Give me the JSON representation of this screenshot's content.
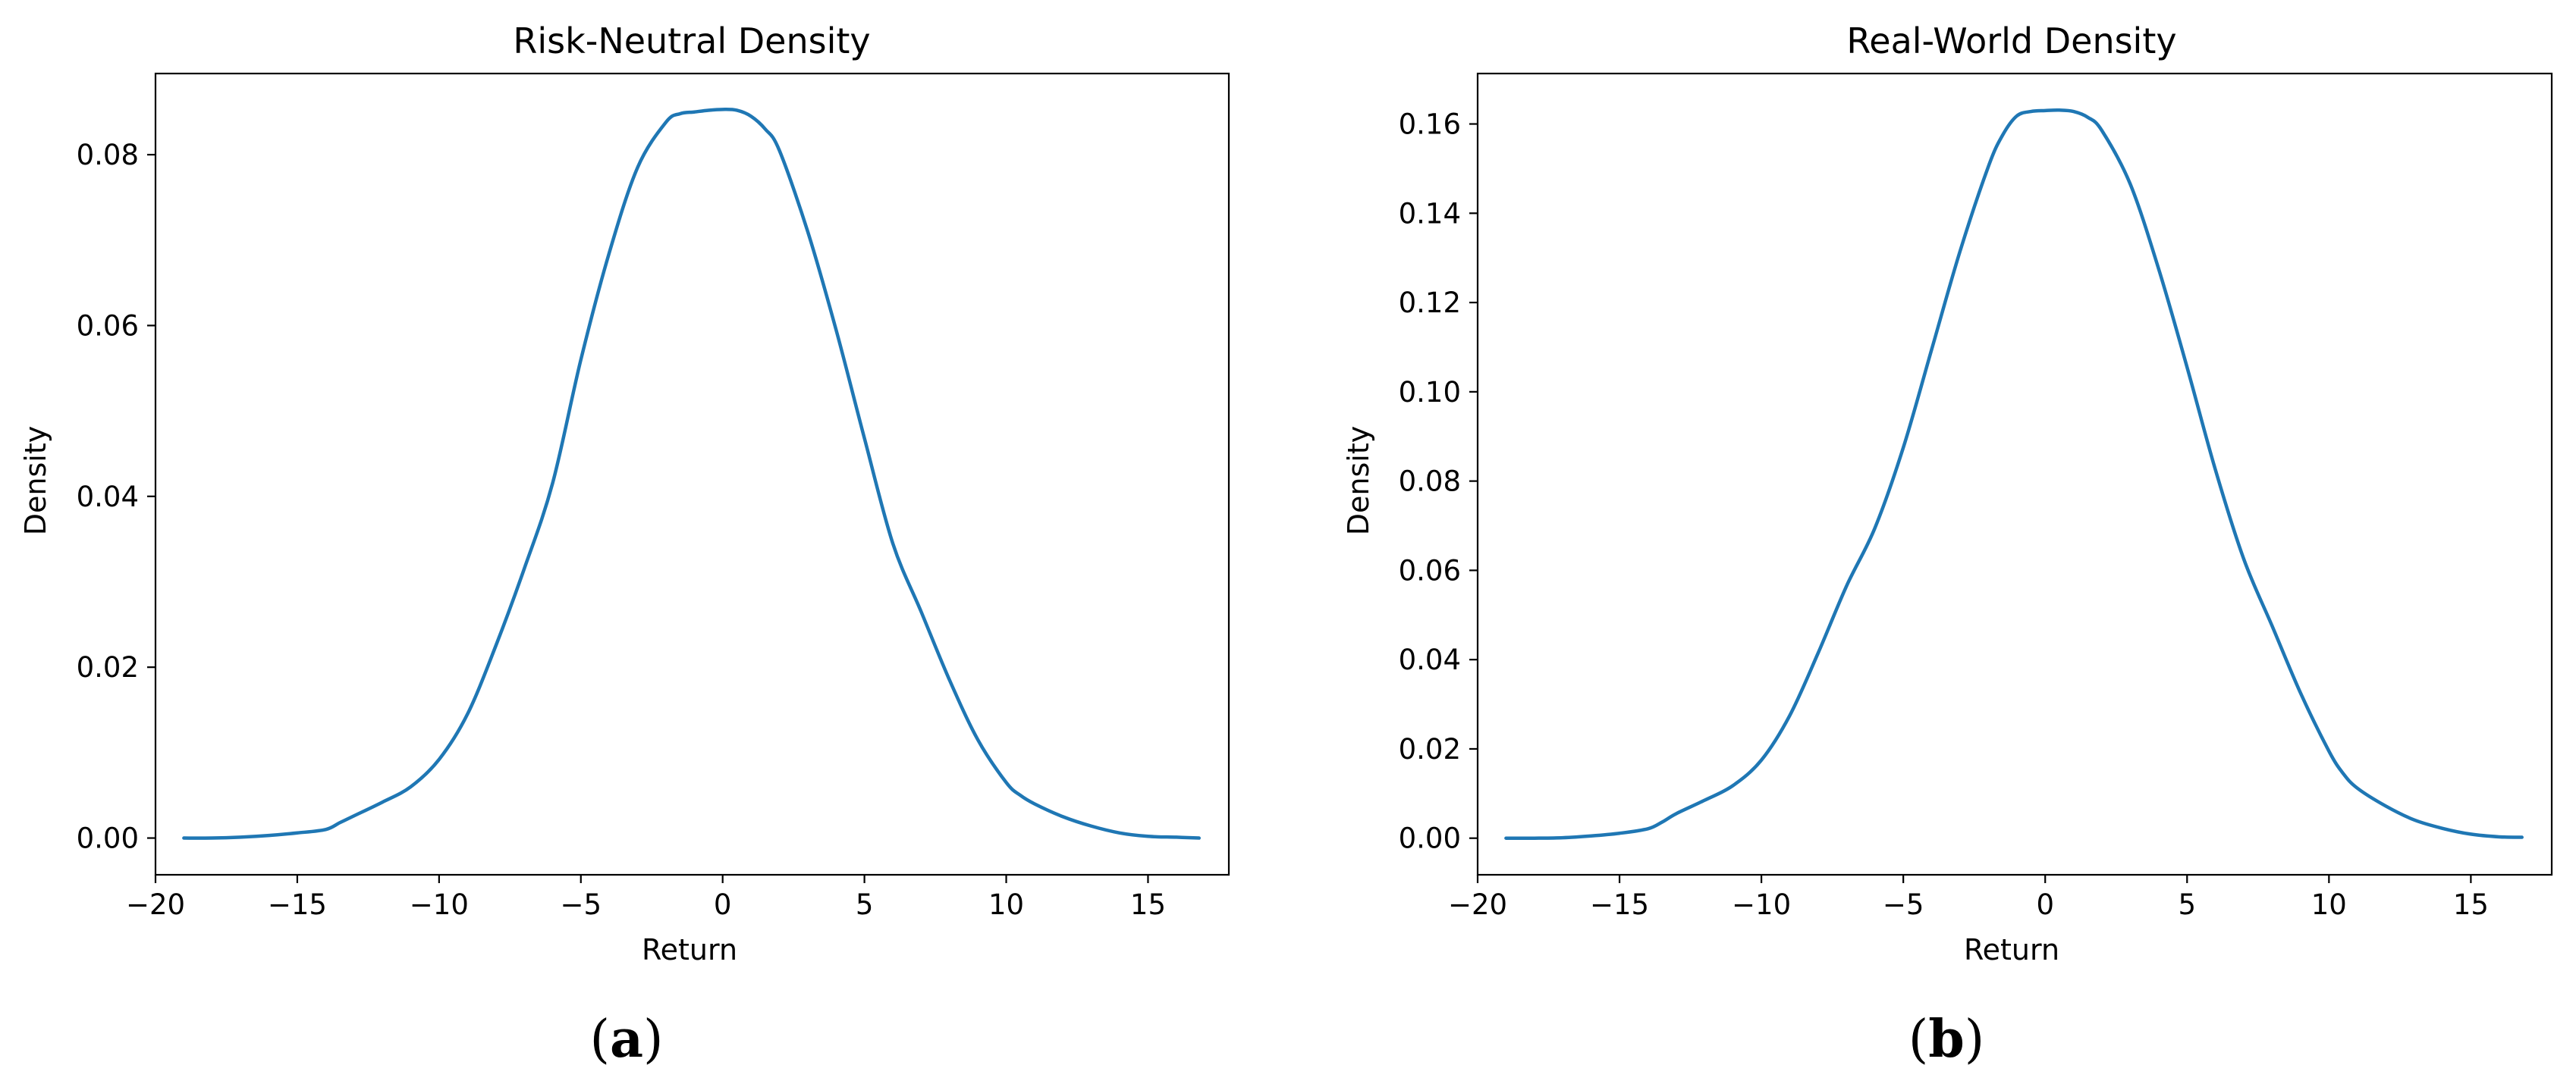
{
  "chart_data": [
    {
      "type": "line",
      "panel_label": "a",
      "title": "Risk-Neutral Density",
      "xlabel": "Return",
      "ylabel": "Density",
      "xlim": [
        -20,
        17.85
      ],
      "ylim": [
        -0.0043,
        0.0895
      ],
      "xticks": [
        -20,
        -15,
        -10,
        -5,
        0,
        5,
        10,
        15
      ],
      "xtick_labels": [
        "−20",
        "−15",
        "−10",
        "−5",
        "0",
        "5",
        "10",
        "15"
      ],
      "yticks": [
        0.0,
        0.02,
        0.04,
        0.06,
        0.08
      ],
      "ytick_labels": [
        "0.00",
        "0.02",
        "0.04",
        "0.06",
        "0.08"
      ],
      "grid": false,
      "series_color": "#1f77b4",
      "series": [
        {
          "x": [
            -19.0,
            -18.0,
            -17.0,
            -16.0,
            -15.0,
            -14.0,
            -13.5,
            -13.0,
            -12.0,
            -11.0,
            -10.0,
            -9.0,
            -8.0,
            -7.0,
            -6.0,
            -5.0,
            -4.0,
            -3.0,
            -2.0,
            -1.5,
            -1.0,
            -0.5,
            0.0,
            0.5,
            1.0,
            1.5,
            2.0,
            3.0,
            4.0,
            5.0,
            6.0,
            7.0,
            8.0,
            9.0,
            10.0,
            10.5,
            11.0,
            12.0,
            13.0,
            14.0,
            15.0,
            16.0,
            16.8
          ],
          "y": [
            0.0,
            0.0,
            0.0001,
            0.0003,
            0.0006,
            0.001,
            0.0018,
            0.0026,
            0.0042,
            0.006,
            0.0092,
            0.0145,
            0.0225,
            0.0315,
            0.0415,
            0.056,
            0.0685,
            0.0785,
            0.0838,
            0.0848,
            0.085,
            0.0852,
            0.0853,
            0.0852,
            0.0845,
            0.083,
            0.0805,
            0.071,
            0.0595,
            0.0468,
            0.0345,
            0.0265,
            0.0185,
            0.0115,
            0.0065,
            0.005,
            0.004,
            0.0025,
            0.0014,
            0.0006,
            0.0002,
            0.0001,
            0.0
          ]
        }
      ]
    },
    {
      "type": "line",
      "panel_label": "b",
      "title": "Real-World Density",
      "xlabel": "Return",
      "ylabel": "Density",
      "xlim": [
        -20,
        17.85
      ],
      "ylim": [
        -0.0082,
        0.1713
      ],
      "xticks": [
        -20,
        -15,
        -10,
        -5,
        0,
        5,
        10,
        15
      ],
      "xtick_labels": [
        "−20",
        "−15",
        "−10",
        "−5",
        "0",
        "5",
        "10",
        "15"
      ],
      "yticks": [
        0.0,
        0.02,
        0.04,
        0.06,
        0.08,
        0.1,
        0.12,
        0.14,
        0.16
      ],
      "ytick_labels": [
        "0.00",
        "0.02",
        "0.04",
        "0.06",
        "0.08",
        "0.10",
        "0.12",
        "0.14",
        "0.16"
      ],
      "grid": false,
      "series_color": "#1f77b4",
      "series": [
        {
          "x": [
            -19.0,
            -18.0,
            -17.0,
            -16.0,
            -15.0,
            -14.0,
            -13.5,
            -13.0,
            -12.0,
            -11.0,
            -10.0,
            -9.0,
            -8.0,
            -7.0,
            -6.0,
            -5.0,
            -4.0,
            -3.0,
            -2.0,
            -1.5,
            -1.0,
            -0.5,
            0.0,
            0.5,
            1.0,
            1.5,
            2.0,
            3.0,
            4.0,
            5.0,
            6.0,
            7.0,
            8.0,
            9.0,
            10.0,
            10.5,
            11.0,
            12.0,
            13.0,
            14.0,
            15.0,
            16.0,
            16.8
          ],
          "y": [
            0.0,
            0.0,
            0.0001,
            0.0005,
            0.0011,
            0.0021,
            0.0036,
            0.0055,
            0.0085,
            0.0118,
            0.0175,
            0.0275,
            0.0415,
            0.0565,
            0.0695,
            0.0875,
            0.1095,
            0.1315,
            0.1505,
            0.1575,
            0.1618,
            0.1628,
            0.163,
            0.1631,
            0.1628,
            0.1615,
            0.1585,
            0.1465,
            0.1275,
            0.1055,
            0.0825,
            0.0625,
            0.0475,
            0.0325,
            0.0195,
            0.0145,
            0.0112,
            0.0072,
            0.0041,
            0.0022,
            0.0009,
            0.0003,
            0.0002
          ]
        }
      ]
    }
  ]
}
